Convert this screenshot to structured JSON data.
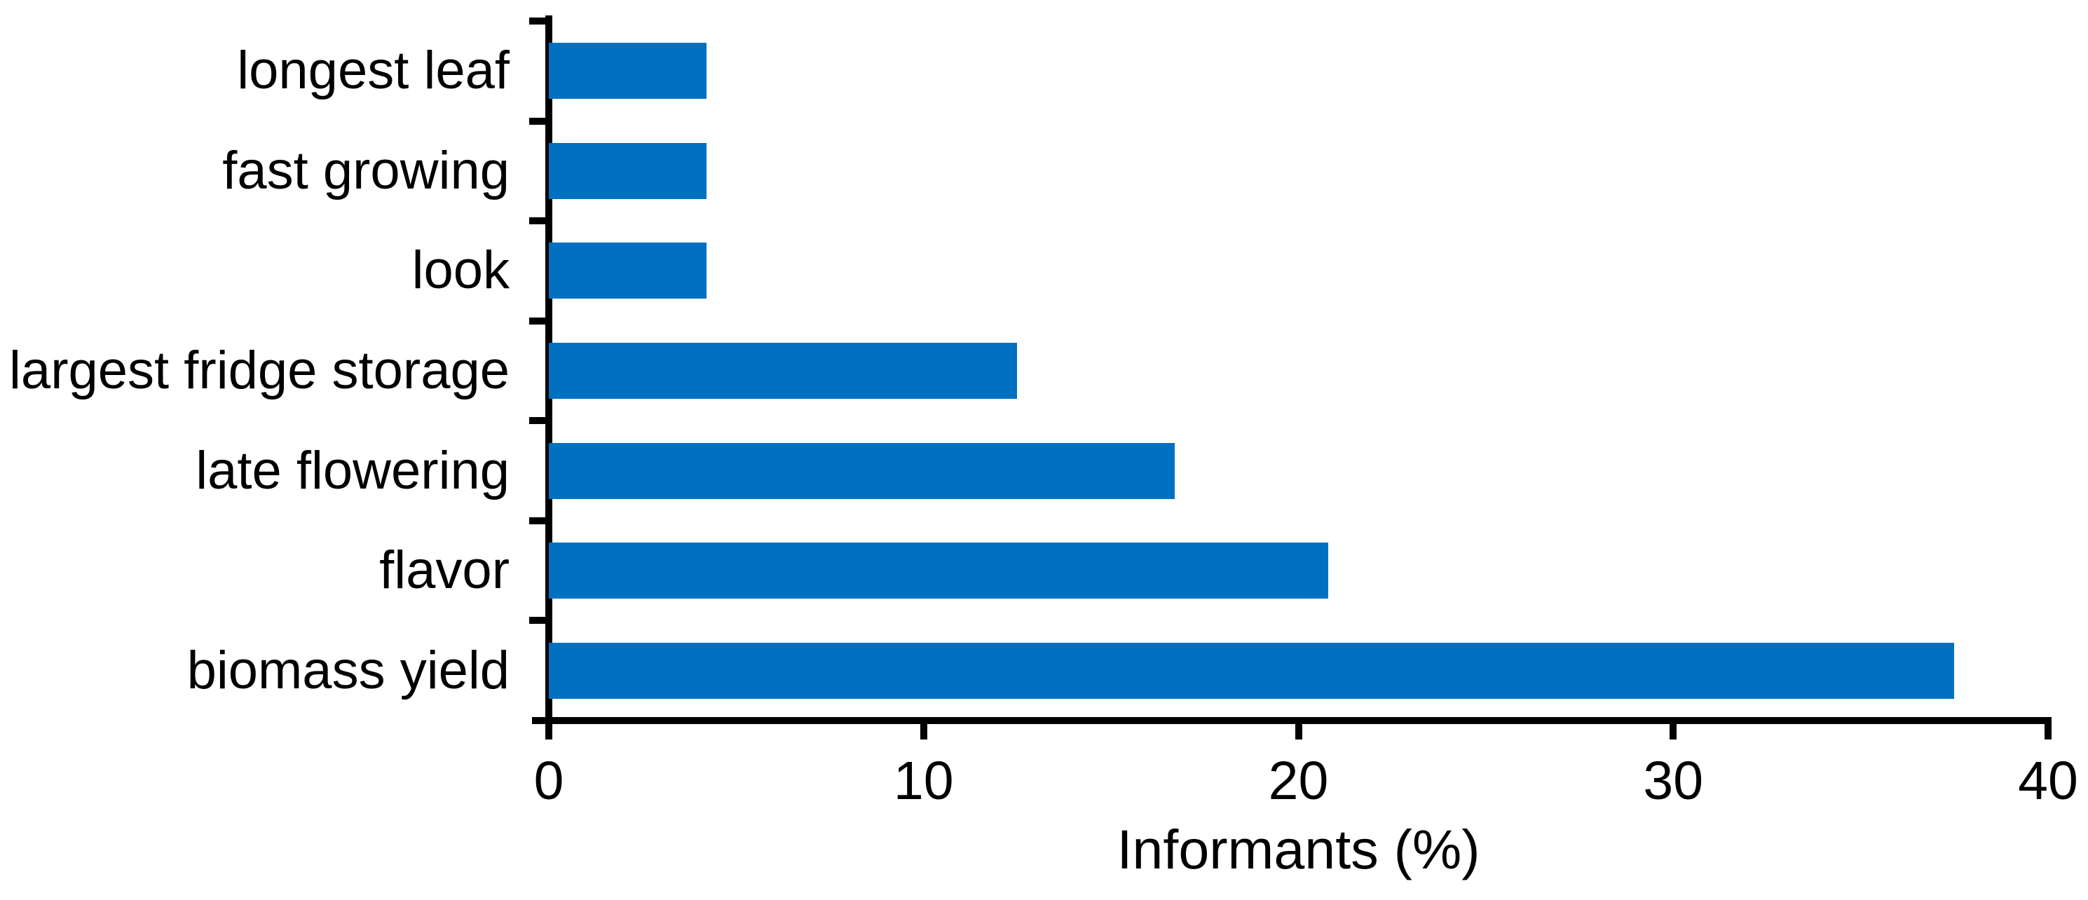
{
  "chart_data": {
    "type": "bar",
    "orientation": "horizontal",
    "title": "",
    "xlabel": "Informants (%)",
    "ylabel": "",
    "categories": [
      "longest leaf",
      "fast growing",
      "look",
      "largest fridge storage",
      "late flowering",
      "flavor",
      "biomass yield"
    ],
    "values": [
      4.2,
      4.2,
      4.2,
      12.5,
      16.7,
      20.8,
      37.5
    ],
    "xlim": [
      0,
      40
    ],
    "x_ticks": [
      0,
      10,
      20,
      30,
      40
    ],
    "x_tick_labels": [
      "0",
      "10",
      "20",
      "30",
      "40"
    ],
    "grid": false,
    "legend": null,
    "bar_color": "#0071c1",
    "axis_color": "#000000",
    "text_color": "#000000",
    "background_color": "#ffffff"
  }
}
